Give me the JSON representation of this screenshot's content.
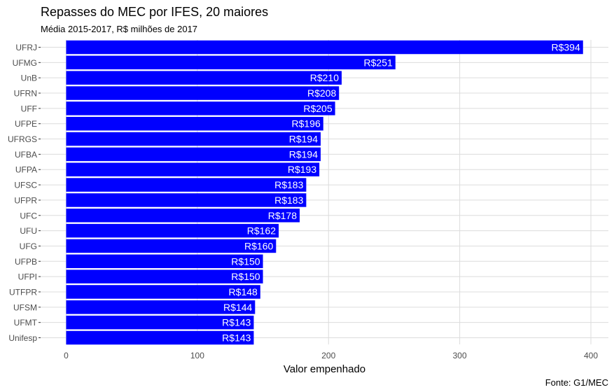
{
  "chart_data": {
    "type": "bar",
    "orientation": "horizontal",
    "title": "Repasses do MEC por IFES, 20 maiores",
    "subtitle": "Média 2015-2017, R$ milhões de 2017",
    "xlabel": "Valor empenhado",
    "ylabel": "",
    "caption": "Fonte: G1/MEC",
    "categories": [
      "UFRJ",
      "UFMG",
      "UnB",
      "UFRN",
      "UFF",
      "UFPE",
      "UFRGS",
      "UFBA",
      "UFPA",
      "UFSC",
      "UFPR",
      "UFC",
      "UFU",
      "UFG",
      "UFPB",
      "UFPI",
      "UTFPR",
      "UFSM",
      "UFMT",
      "Unifesp"
    ],
    "values": [
      394,
      251,
      210,
      208,
      205,
      196,
      194,
      194,
      193,
      183,
      183,
      178,
      162,
      160,
      150,
      150,
      148,
      144,
      143,
      143
    ],
    "data_labels": [
      "R$394",
      "R$251",
      "R$210",
      "R$208",
      "R$205",
      "R$196",
      "R$194",
      "R$194",
      "R$193",
      "R$183",
      "R$183",
      "R$178",
      "R$162",
      "R$160",
      "R$150",
      "R$150",
      "R$148",
      "R$144",
      "R$143",
      "R$143"
    ],
    "xlim": [
      0,
      410
    ],
    "xticks": [
      0,
      100,
      200,
      300,
      400
    ],
    "grid": true,
    "legend": "none",
    "colors": {
      "bar": "#0000FF",
      "bar_label": "#FFFFFF",
      "grid": "#DCDCDC",
      "tick_text": "#4D4D4D"
    }
  }
}
